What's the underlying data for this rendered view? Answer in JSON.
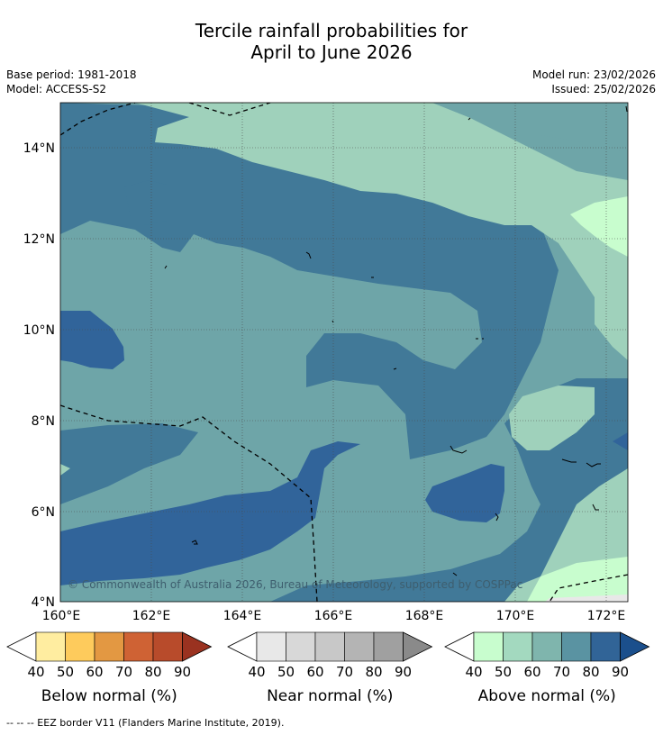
{
  "title_line1": "Tercile rainfall probabilities for",
  "title_line2": "April to June 2026",
  "meta_left": [
    "Base period: 1981-2018",
    "Model: ACCESS-S2"
  ],
  "meta_right": [
    "Model run: 23/02/2026",
    "Issued: 25/02/2026"
  ],
  "copyright": "© Commonwealth of Australia 2026, Bureau of Meteorology, supported by COSPPac",
  "footer": "-- -- -- EEZ border V11 (Flanders Marine Institute, 2019).",
  "map": {
    "lon_range": [
      160,
      172.5
    ],
    "lat_range": [
      4,
      15
    ],
    "x_ticks": [
      "160°E",
      "162°E",
      "164°E",
      "166°E",
      "168°E",
      "170°E",
      "172°E"
    ],
    "y_ticks": [
      "14°N",
      "12°N",
      "10°N",
      "8°N",
      "6°N",
      "4°N"
    ],
    "region_colors": {
      "above_50": "#9fd1bb",
      "above_60": "#6ea5a8",
      "above_70": "#417998",
      "above_80": "#31649a",
      "above_40": "#c8fdce"
    }
  },
  "colorbars": [
    {
      "label": "Below normal (%)",
      "ticks": [
        "40",
        "50",
        "60",
        "70",
        "80",
        "90"
      ],
      "colors": [
        "#ffffff",
        "#ffeda0",
        "#fecb5c",
        "#e39842",
        "#cf6234",
        "#b84b2b",
        "#9a3220"
      ]
    },
    {
      "label": "Near normal (%)",
      "ticks": [
        "40",
        "50",
        "60",
        "70",
        "80",
        "90"
      ],
      "colors": [
        "#ffffff",
        "#e8e8e8",
        "#d8d8d8",
        "#c8c8c8",
        "#b4b4b4",
        "#a0a0a0",
        "#8a8a8a"
      ]
    },
    {
      "label": "Above normal (%)",
      "ticks": [
        "40",
        "50",
        "60",
        "70",
        "80",
        "90"
      ],
      "colors": [
        "#ffffff",
        "#c8fdce",
        "#a3d9bf",
        "#7fb5ad",
        "#5a93a2",
        "#316497",
        "#1b4f8c"
      ]
    }
  ]
}
